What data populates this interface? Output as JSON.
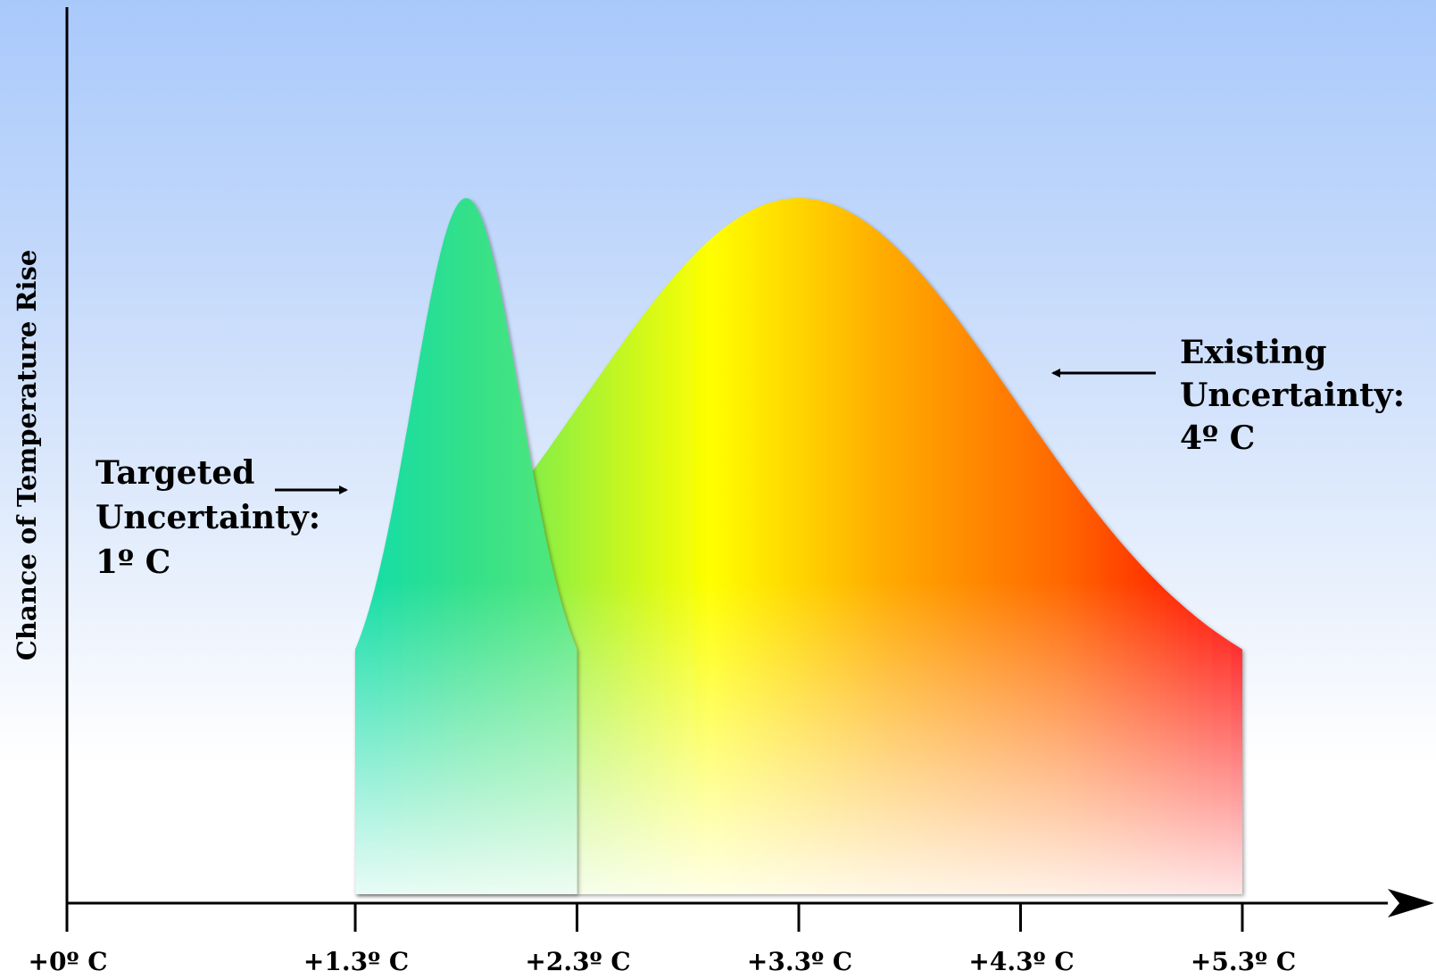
{
  "chart_data": {
    "type": "area",
    "ylabel": "Chance of Temperature Rise",
    "xlabel": "",
    "x_ticks": [
      {
        "value": 0,
        "label": "+0º C"
      },
      {
        "value": 1.3,
        "label": "+1.3º C"
      },
      {
        "value": 2.3,
        "label": "+2.3º C"
      },
      {
        "value": 3.3,
        "label": "+3.3º C"
      },
      {
        "value": 4.3,
        "label": "+4.3º C"
      },
      {
        "value": 5.3,
        "label": "+5.3º C"
      }
    ],
    "xlim": [
      0,
      5.3
    ],
    "grid": false,
    "legend": "none",
    "series": [
      {
        "range": [
          1.3,
          5.3
        ],
        "peak_x": 3.3,
        "width": 4,
        "colors": [
          "#22dd88",
          "#88ee44",
          "#ffff00",
          "#ffaa00",
          "#ff6600",
          "#ff0000"
        ]
      },
      {
        "range": [
          1.3,
          2.3
        ],
        "peak_x": 1.8,
        "width": 1,
        "colors": [
          "#11ddaa",
          "#33e08a",
          "#55e879"
        ]
      }
    ],
    "annotations": [
      {
        "lines": [
          "Targeted",
          "Uncertainty:",
          "1º C"
        ],
        "arrow": "right"
      },
      {
        "lines": [
          "Existing",
          "Uncertainty:",
          "4º C"
        ],
        "arrow": "left"
      }
    ],
    "colors": {
      "axis": "#000000",
      "background_top": "#a9c9fb",
      "background_bottom": "#ffffff"
    }
  }
}
